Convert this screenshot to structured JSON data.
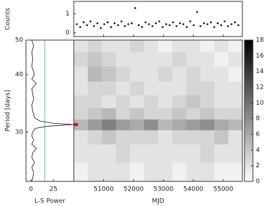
{
  "chart_data": [
    {
      "type": "scatter",
      "ylabel": "Counts",
      "color": "#111111",
      "x": [
        50100,
        50215,
        50330,
        50445,
        50560,
        50675,
        50790,
        50905,
        51020,
        51135,
        51250,
        51365,
        51480,
        51595,
        51710,
        51825,
        51940,
        52055,
        52170,
        52285,
        52400,
        52515,
        52630,
        52745,
        52860,
        52975,
        53090,
        53205,
        53320,
        53435,
        53550,
        53665,
        53780,
        53895,
        54010,
        54125,
        54240,
        54355,
        54470,
        54585,
        54700,
        54815,
        54930,
        55045,
        55160,
        55275,
        55390,
        55505
      ],
      "values": [
        0.45,
        0.3,
        0.55,
        0.4,
        0.6,
        0.35,
        0.5,
        0.25,
        0.45,
        0.55,
        0.3,
        0.5,
        0.4,
        0.6,
        0.35,
        0.45,
        0.5,
        1.3,
        0.4,
        0.3,
        0.55,
        0.45,
        0.35,
        0.5,
        0.6,
        0.3,
        0.45,
        0.4,
        0.55,
        0.35,
        0.5,
        0.45,
        0.3,
        0.6,
        0.4,
        1.1,
        0.35,
        0.5,
        0.45,
        0.55,
        0.3,
        0.5,
        0.4,
        0.6,
        0.35,
        0.45,
        0.55,
        0.4
      ],
      "xlim": [
        50000,
        55640
      ],
      "ylim": [
        -0.2,
        1.65
      ],
      "yticks": [
        0,
        1
      ]
    },
    {
      "type": "line",
      "xlabel": "L-S Power",
      "ylabel": "Period [days]",
      "color": "#111111",
      "y": [
        50,
        48,
        46,
        44,
        42,
        40,
        39,
        38,
        37,
        36,
        35,
        34,
        33,
        32.5,
        32,
        31.5,
        31.2,
        31,
        30.8,
        30.5,
        30,
        29.5,
        29,
        28.5,
        28,
        27.5,
        27,
        26.5,
        26,
        25.5,
        25,
        24.7
      ],
      "values": [
        1,
        3,
        1,
        2,
        1,
        4,
        1,
        6,
        1,
        2,
        3,
        1,
        2,
        3,
        4,
        10,
        25,
        47,
        20,
        5,
        2,
        1,
        3,
        1,
        6,
        2,
        1,
        4,
        1,
        3,
        2,
        1
      ],
      "xlim": [
        -5.5,
        47.7
      ],
      "xticks": [
        0,
        25
      ],
      "ylim": [
        50,
        24.7
      ],
      "yticks": [
        30,
        40,
        50
      ],
      "yscale": "reciprocal",
      "vline": 15.5,
      "vline_color": "#6cc46c"
    },
    {
      "type": "heatmap",
      "xlabel": "MJD",
      "x": [
        50235,
        50705,
        51175,
        51645,
        52115,
        52585,
        53055,
        53525,
        53995,
        54465,
        54935,
        55405
      ],
      "y": [
        48,
        44,
        40,
        37,
        34.5,
        32.5,
        31,
        29.5,
        27.5,
        25.5
      ],
      "z": [
        [
          2,
          3,
          2,
          2,
          3,
          2,
          1,
          2,
          2,
          1,
          2,
          1
        ],
        [
          3,
          4,
          3,
          2,
          2,
          2,
          2,
          3,
          2,
          2,
          1,
          2
        ],
        [
          2,
          5,
          4,
          3,
          2,
          2,
          3,
          2,
          3,
          2,
          2,
          1
        ],
        [
          2,
          3,
          3,
          2,
          3,
          2,
          2,
          2,
          3,
          3,
          2,
          2
        ],
        [
          3,
          3,
          2,
          3,
          2,
          3,
          2,
          3,
          4,
          3,
          2,
          2
        ],
        [
          3,
          4,
          5,
          3,
          4,
          3,
          3,
          4,
          3,
          4,
          3,
          3
        ],
        [
          5,
          7,
          9,
          7,
          6,
          8,
          5,
          6,
          7,
          8,
          6,
          5
        ],
        [
          2,
          3,
          4,
          3,
          3,
          3,
          2,
          3,
          3,
          3,
          4,
          2
        ],
        [
          2,
          2,
          2,
          3,
          2,
          2,
          2,
          2,
          2,
          3,
          2,
          2
        ],
        [
          1,
          2,
          2,
          2,
          1,
          2,
          2,
          1,
          2,
          2,
          1,
          1
        ]
      ],
      "xlim": [
        50000,
        55640
      ],
      "xticks": [
        51000,
        52000,
        53000,
        54000,
        55000
      ],
      "ylim": [
        50,
        24.7
      ],
      "yscale": "reciprocal",
      "zlim": [
        0,
        18
      ],
      "zticks": [
        0,
        2,
        4,
        6,
        8,
        10,
        12,
        14,
        16,
        18
      ],
      "marker": 31,
      "marker_color": "#cc1111"
    }
  ]
}
